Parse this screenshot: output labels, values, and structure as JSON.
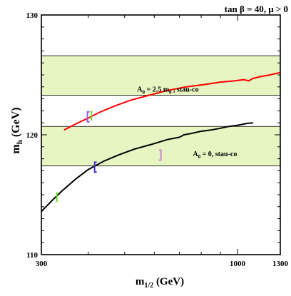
{
  "chart_data": {
    "type": "line",
    "title": "tan β = 40,  μ > 0",
    "xlabel_main": "m",
    "xlabel_sub": "1/2",
    "xlabel_unit": " (GeV)",
    "ylabel_main": "m",
    "ylabel_sub": "h",
    "ylabel_unit": " (GeV)",
    "x_scale": "log",
    "xlim": [
      300,
      1300
    ],
    "ylim": [
      110,
      130
    ],
    "x_ticks": [
      {
        "value": 300,
        "label": "300"
      },
      {
        "value": 1000,
        "label": "1000"
      },
      {
        "value": 1300,
        "label": "1300"
      }
    ],
    "y_ticks": [
      {
        "value": 110,
        "label": "110"
      },
      {
        "value": 120,
        "label": "120"
      },
      {
        "value": 130,
        "label": "130"
      }
    ],
    "bands": [
      {
        "from": 117.4,
        "to": 120.7,
        "color": "#e6f5c2"
      },
      {
        "from": 123.3,
        "to": 126.6,
        "color": "#e6f5c2"
      }
    ],
    "series": [
      {
        "annotation_text": "A0 = 2.5 m0 , stau-co",
        "label_parts": {
          "A": "A",
          "A_sub": "0",
          "mid": " = 2.5 m",
          "m_sub": "0",
          "end": " , stau-co"
        },
        "label_at": [
          540,
          123.6
        ],
        "color": "#ff0000",
        "x": [
          345,
          370,
          400,
          430,
          470,
          520,
          580,
          650,
          730,
          820,
          900,
          980,
          1040,
          1070,
          1100,
          1150,
          1220,
          1300
        ],
        "y": [
          120.4,
          120.9,
          121.4,
          121.9,
          122.4,
          122.9,
          123.3,
          123.7,
          124.0,
          124.2,
          124.4,
          124.5,
          124.6,
          124.5,
          124.7,
          124.85,
          125.0,
          125.2
        ]
      },
      {
        "annotation_text": "A0 = 0, stau-co",
        "label_parts": {
          "A": "A",
          "A_sub": "0",
          "mid": " = 0, stau-co",
          "m_sub": "",
          "end": ""
        },
        "label_at": [
          760,
          118.2
        ],
        "color": "#000000",
        "x": [
          300,
          320,
          340,
          370,
          400,
          440,
          480,
          530,
          590,
          650,
          700,
          720,
          750,
          800,
          850,
          900,
          950,
          1000,
          1060,
          1100
        ],
        "y": [
          113.6,
          114.5,
          115.3,
          116.3,
          117.1,
          117.8,
          118.3,
          118.8,
          119.2,
          119.6,
          119.8,
          120.0,
          120.1,
          120.3,
          120.4,
          120.55,
          120.7,
          120.8,
          120.95,
          121.0
        ]
      }
    ],
    "markers": [
      {
        "x": 330,
        "y": 114.8,
        "color": "#66dd22",
        "kind": "bar"
      },
      {
        "x": 416,
        "y": 117.3,
        "color": "#4433cc",
        "kind": "bracket-left"
      },
      {
        "x": 625,
        "y": 118.3,
        "color": "#cc88cc",
        "kind": "bracket-right"
      },
      {
        "x": 398,
        "y": 121.5,
        "color": "#9955dd",
        "kind": "bracket-left"
      },
      {
        "x": 408,
        "y": 121.6,
        "color": "#66dd22",
        "kind": "bar"
      }
    ],
    "grid": false,
    "legend": "none"
  }
}
